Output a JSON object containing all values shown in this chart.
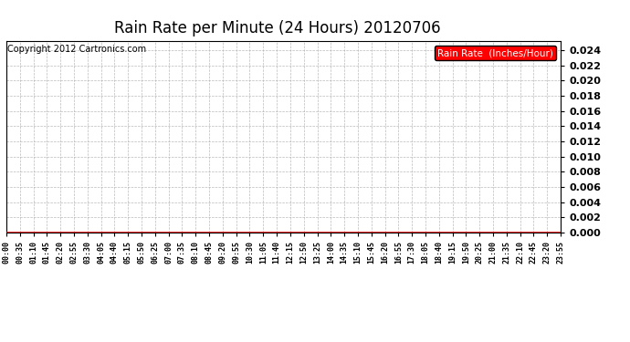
{
  "title": "Rain Rate per Minute (24 Hours) 20120706",
  "copyright_text": "Copyright 2012 Cartronics.com",
  "legend_label": "Rain Rate  (Inches/Hour)",
  "legend_bg": "#ff0000",
  "legend_text_color": "#ffffff",
  "line_color": "#ff0000",
  "line_value": 0.0,
  "ylim": [
    0.0,
    0.0252
  ],
  "yticks": [
    0.0,
    0.002,
    0.004,
    0.006,
    0.008,
    0.01,
    0.012,
    0.014,
    0.016,
    0.018,
    0.02,
    0.022,
    0.024
  ],
  "xtick_labels": [
    "00:00",
    "00:35",
    "01:10",
    "01:45",
    "02:20",
    "02:55",
    "03:30",
    "04:05",
    "04:40",
    "05:15",
    "05:50",
    "06:25",
    "07:00",
    "07:35",
    "08:10",
    "08:45",
    "09:20",
    "09:55",
    "10:30",
    "11:05",
    "11:40",
    "12:15",
    "12:50",
    "13:25",
    "14:00",
    "14:35",
    "15:10",
    "15:45",
    "16:20",
    "16:55",
    "17:30",
    "18:05",
    "18:40",
    "19:15",
    "19:50",
    "20:25",
    "21:00",
    "21:35",
    "22:10",
    "22:45",
    "23:20",
    "23:55"
  ],
  "bg_color": "#ffffff",
  "grid_color": "#aaaaaa",
  "title_fontsize": 12,
  "ytick_fontsize": 8,
  "xtick_fontsize": 6,
  "copyright_fontsize": 7,
  "legend_fontsize": 7.5
}
